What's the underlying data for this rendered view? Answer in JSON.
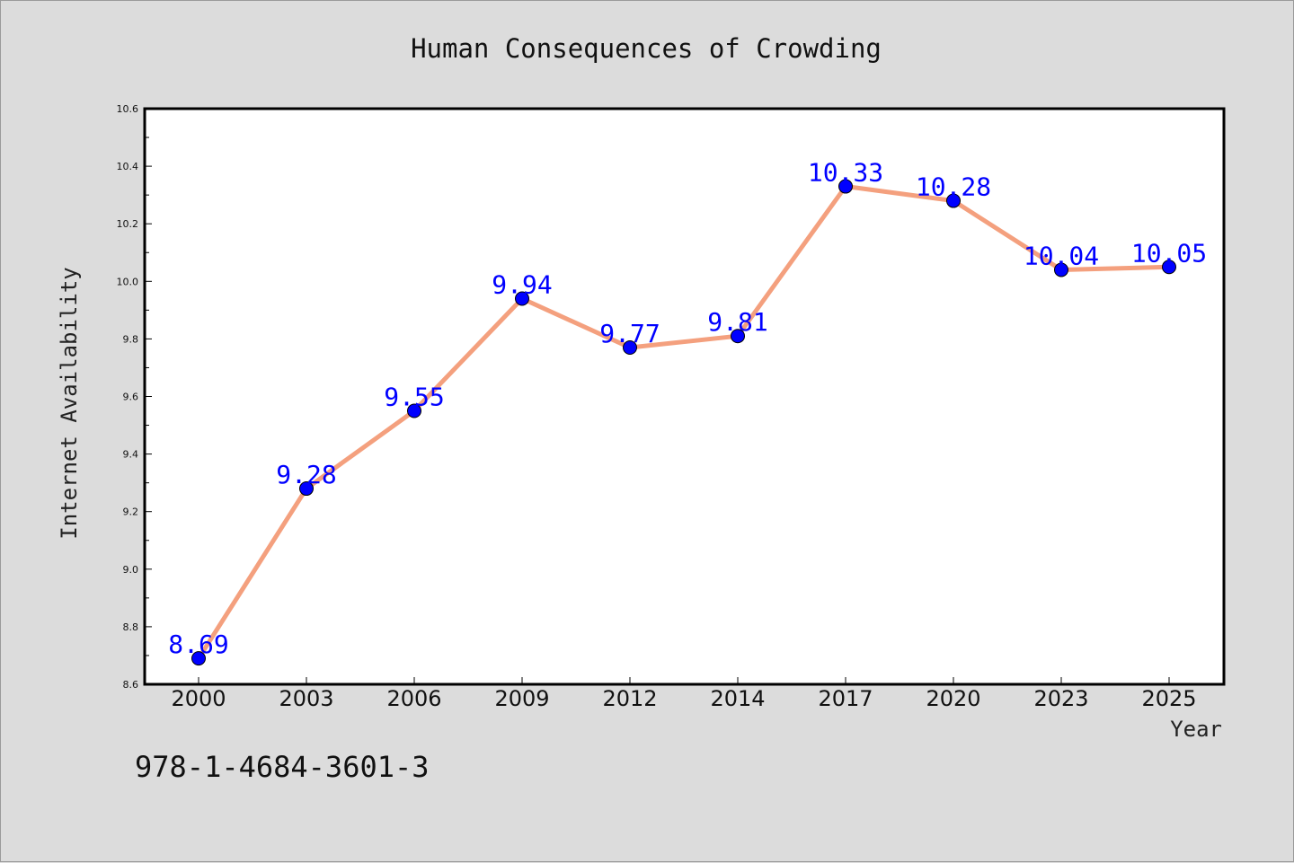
{
  "chart_data": {
    "type": "line",
    "title": "Human Consequences of Crowding",
    "xlabel": "Year",
    "ylabel": "Internet Availability",
    "categories": [
      "2000",
      "2003",
      "2006",
      "2009",
      "2012",
      "2014",
      "2017",
      "2020",
      "2023",
      "2025"
    ],
    "series": [
      {
        "values": [
          8.69,
          9.28,
          9.55,
          9.94,
          9.77,
          9.81,
          10.33,
          10.28,
          10.04,
          10.05
        ],
        "labels": [
          "8.69",
          "9.28",
          "9.55",
          "9.94",
          "9.77",
          "9.81",
          "10.33",
          "10.28",
          "10.04",
          "10.05"
        ]
      }
    ],
    "ylim": [
      8.6,
      10.6
    ],
    "yticks": [
      "8.6",
      "8.8",
      "9.0",
      "9.2",
      "9.4",
      "9.6",
      "9.8",
      "10.0",
      "10.2",
      "10.4",
      "10.6"
    ],
    "grid": false,
    "line_color": "#f4a07e",
    "marker_color": "#0000ff",
    "label_color": "#0000ff"
  },
  "footer": {
    "isbn": "978-1-4684-3601-3"
  }
}
